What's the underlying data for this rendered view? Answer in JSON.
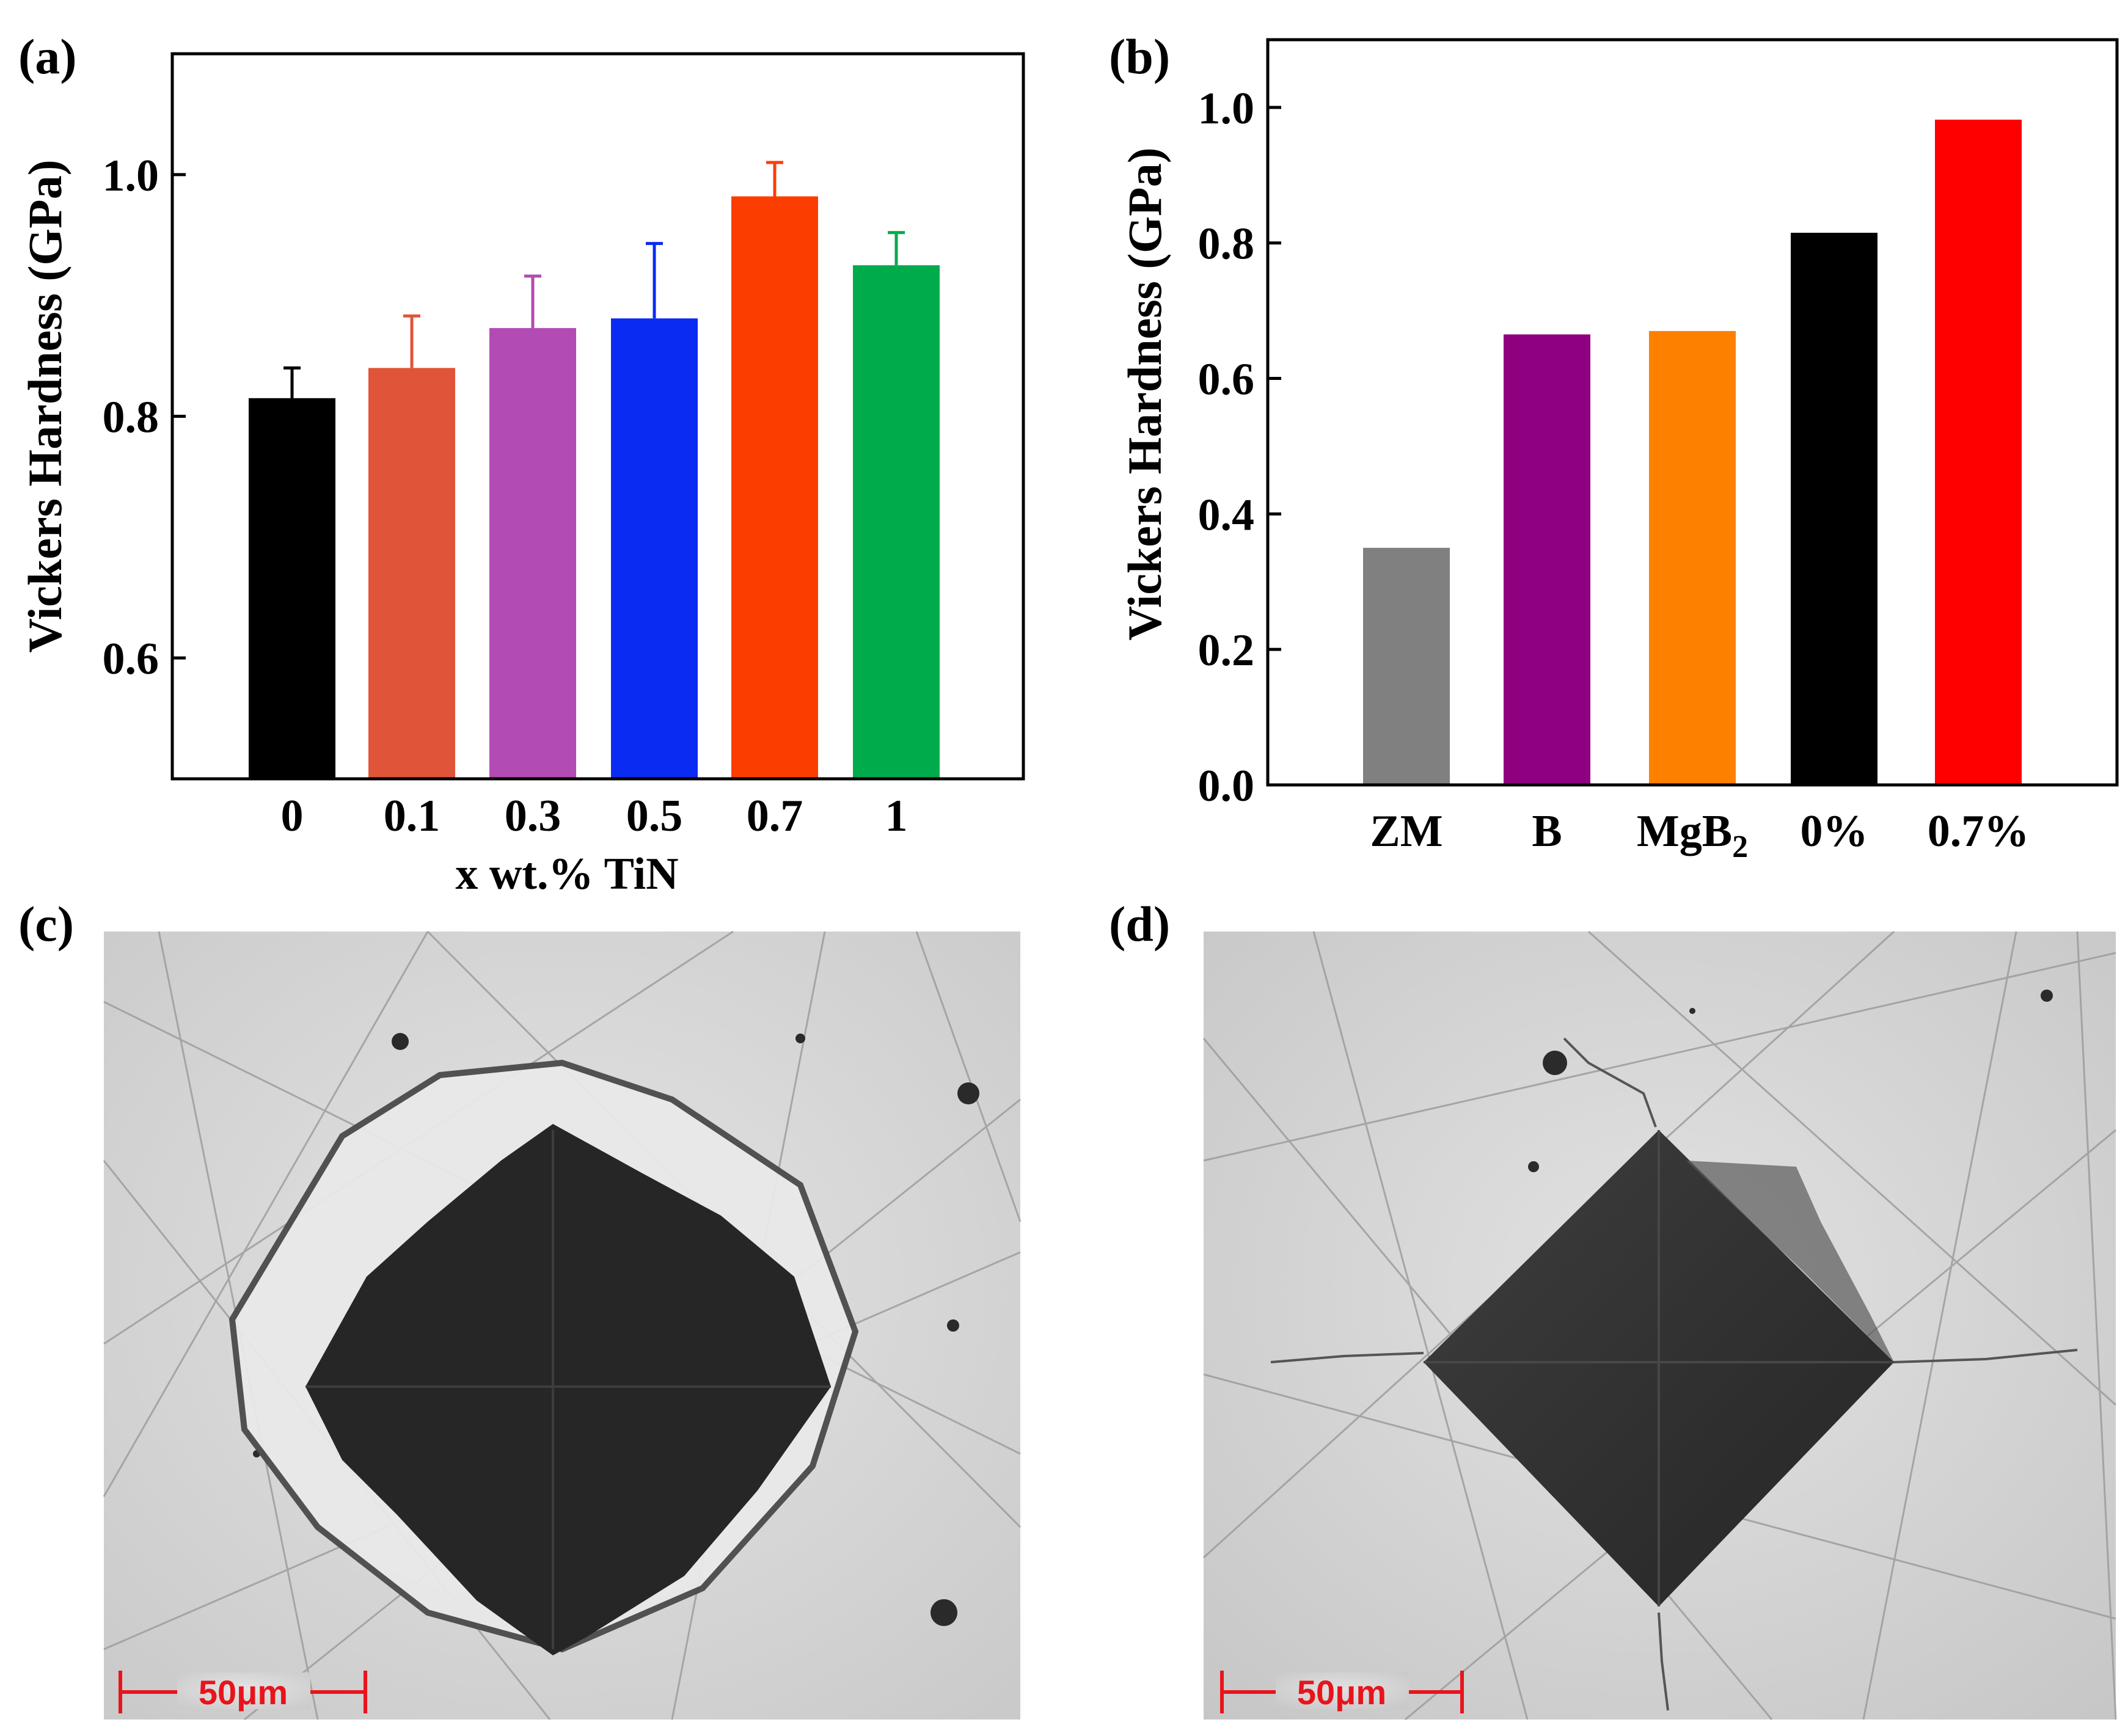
{
  "chart_data": [
    {
      "type": "bar",
      "panel": "(a)",
      "ylabel": "Vickers Hardness (GPa)",
      "xlabel": "x wt.% TiN",
      "categories": [
        "0",
        "0.1",
        "0.3",
        "0.5",
        "0.7",
        "1"
      ],
      "values": [
        0.815,
        0.84,
        0.873,
        0.881,
        0.982,
        0.925
      ],
      "errors": [
        0.025,
        0.043,
        0.043,
        0.062,
        0.028,
        0.027
      ],
      "colors": [
        "#000000",
        "#e05539",
        "#b24bb4",
        "#0a2bf2",
        "#fb3e00",
        "#00ab4c"
      ],
      "ylim": [
        0.5,
        1.1
      ],
      "yticks": [
        0.6,
        0.8,
        1.0
      ],
      "ytick_labels": [
        "0.6",
        "0.8",
        "1.0"
      ]
    },
    {
      "type": "bar",
      "panel": "(b)",
      "ylabel": "Vickers Hardness (GPa)",
      "xlabel": "",
      "categories": [
        "ZM",
        "B",
        "MgB2",
        "0%",
        "0.7%"
      ],
      "values": [
        0.35,
        0.665,
        0.67,
        0.815,
        0.982
      ],
      "colors": [
        "#808080",
        "#8f0080",
        "#fd8000",
        "#000000",
        "#ff0000"
      ],
      "ylim": [
        0.0,
        1.1
      ],
      "yticks": [
        0.0,
        0.2,
        0.4,
        0.6,
        0.8,
        1.0
      ],
      "ytick_labels": [
        "0.0",
        "0.2",
        "0.4",
        "0.6",
        "0.8",
        "1.0"
      ]
    }
  ],
  "micrographs": {
    "c": {
      "panel": "(c)",
      "scale_label": "50μm"
    },
    "d": {
      "panel": "(d)",
      "scale_label": "50μm"
    }
  },
  "styles": {
    "scale_color": "#e8141c"
  }
}
